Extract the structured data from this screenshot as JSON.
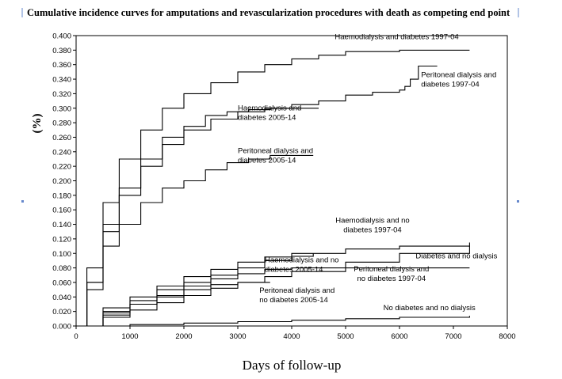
{
  "chart_data": {
    "type": "line",
    "title": "Cumulative incidence curves for amputations and revascularization procedures  with death as competing end point",
    "xlabel": "Days of follow-up",
    "ylabel": "(%)",
    "xlim": [
      0,
      8000
    ],
    "ylim": [
      0,
      0.4
    ],
    "x_ticks": [
      "0",
      "1000",
      "2000",
      "3000",
      "4000",
      "5000",
      "6000",
      "7000",
      "8000"
    ],
    "y_ticks": [
      "0.000",
      "0.020",
      "0.040",
      "0.060",
      "0.080",
      "0.100",
      "0.120",
      "0.140",
      "0.160",
      "0.180",
      "0.200",
      "0.220",
      "0.240",
      "0.260",
      "0.280",
      "0.300",
      "0.320",
      "0.340",
      "0.360",
      "0.380",
      "0.400"
    ],
    "grid": false,
    "legend": "none",
    "series": [
      {
        "name": "Haemodialysis and diabetes 1997-04",
        "x": [
          0,
          200,
          500,
          800,
          1200,
          1600,
          2000,
          2500,
          3000,
          3500,
          4000,
          4500,
          5000,
          6000,
          7300
        ],
        "y": [
          0,
          0.08,
          0.17,
          0.23,
          0.27,
          0.3,
          0.32,
          0.335,
          0.35,
          0.36,
          0.368,
          0.373,
          0.378,
          0.38,
          0.38
        ]
      },
      {
        "name": "Peritoneal dialysis and diabetes 1997-04",
        "x": [
          0,
          200,
          500,
          800,
          1200,
          1600,
          2000,
          2500,
          3000,
          3500,
          4000,
          4500,
          5000,
          5500,
          6000,
          6100,
          6200,
          6350,
          6700
        ],
        "y": [
          0,
          0.06,
          0.13,
          0.18,
          0.22,
          0.25,
          0.27,
          0.285,
          0.295,
          0.3,
          0.305,
          0.31,
          0.318,
          0.322,
          0.325,
          0.33,
          0.34,
          0.358,
          0.358
        ]
      },
      {
        "name": "Haemodialysis and diabetes 2005-14",
        "x": [
          0,
          200,
          500,
          800,
          1200,
          1600,
          2000,
          2400,
          2800,
          3200,
          3600,
          4000,
          4500
        ],
        "y": [
          0,
          0.06,
          0.14,
          0.19,
          0.23,
          0.26,
          0.275,
          0.29,
          0.295,
          0.298,
          0.3,
          0.3,
          0.3
        ]
      },
      {
        "name": "Peritoneal dialysis and diabetes 2005-14",
        "x": [
          0,
          200,
          500,
          800,
          1200,
          1600,
          2000,
          2400,
          2800,
          3200,
          3600,
          4000,
          4400
        ],
        "y": [
          0,
          0.05,
          0.11,
          0.14,
          0.17,
          0.19,
          0.2,
          0.215,
          0.225,
          0.23,
          0.235,
          0.235,
          0.235
        ]
      },
      {
        "name": "Haemodialysis and no diabetes 1997-04",
        "x": [
          0,
          500,
          1000,
          1500,
          2000,
          2500,
          3000,
          3500,
          4000,
          5000,
          6000,
          7300
        ],
        "y": [
          0,
          0.025,
          0.04,
          0.055,
          0.068,
          0.078,
          0.088,
          0.095,
          0.1,
          0.106,
          0.11,
          0.115
        ]
      },
      {
        "name": "Diabetes and no dialysis",
        "x": [
          0,
          500,
          1000,
          1500,
          2000,
          2500,
          3000,
          3500,
          4000,
          5000,
          6000,
          7300
        ],
        "y": [
          0,
          0.012,
          0.022,
          0.032,
          0.042,
          0.052,
          0.06,
          0.068,
          0.075,
          0.088,
          0.1,
          0.11
        ]
      },
      {
        "name": "Haemodialysis and no diabetes 2005-14",
        "x": [
          0,
          500,
          1000,
          1500,
          2000,
          2500,
          3000,
          3500,
          4000,
          4400
        ],
        "y": [
          0,
          0.02,
          0.035,
          0.05,
          0.06,
          0.07,
          0.08,
          0.09,
          0.096,
          0.1
        ]
      },
      {
        "name": "Peritoneal dialysis and no diabetes 1997-04",
        "x": [
          0,
          500,
          1000,
          1500,
          2000,
          2500,
          3000,
          3500,
          4000,
          5000,
          6000,
          7300
        ],
        "y": [
          0,
          0.015,
          0.03,
          0.042,
          0.055,
          0.065,
          0.072,
          0.078,
          0.08,
          0.08,
          0.08,
          0.08
        ]
      },
      {
        "name": "Peritoneal dialysis and no diabetes 2005-14",
        "x": [
          0,
          500,
          1000,
          1500,
          2000,
          2500,
          3000,
          3600
        ],
        "y": [
          0,
          0.018,
          0.03,
          0.04,
          0.05,
          0.057,
          0.06,
          0.06
        ]
      },
      {
        "name": "No diabetes and no dialysis",
        "x": [
          0,
          1000,
          2000,
          3000,
          4000,
          5000,
          6000,
          7300
        ],
        "y": [
          0,
          0.002,
          0.004,
          0.006,
          0.008,
          0.01,
          0.012,
          0.014
        ]
      }
    ],
    "annotations": [
      {
        "lines": [
          "Haemodialysis and diabetes 1997-04"
        ],
        "x": 4800,
        "y": 0.395,
        "anchor": "start"
      },
      {
        "lines": [
          "Peritoneal dialysis and",
          "diabetes 1997-04"
        ],
        "x": 6400,
        "y": 0.343,
        "anchor": "start"
      },
      {
        "lines": [
          "Haemodialysis and",
          "diabetes 2005-14"
        ],
        "x": 3000,
        "y": 0.297,
        "anchor": "start"
      },
      {
        "lines": [
          "Peritoneal dialysis and",
          "diabetes 2005-14"
        ],
        "x": 3000,
        "y": 0.238,
        "anchor": "start"
      },
      {
        "lines": [
          "Haemodialysis and no",
          "diabetes 1997-04"
        ],
        "x": 5500,
        "y": 0.142,
        "anchor": "middle"
      },
      {
        "lines": [
          "Diabetes and no dialysis"
        ],
        "x": 6300,
        "y": 0.093,
        "anchor": "start"
      },
      {
        "lines": [
          "Haemodialysis and no",
          "diabetes 2005-14"
        ],
        "x": 3500,
        "y": 0.088,
        "anchor": "start"
      },
      {
        "lines": [
          "Peritoneal dialysis and",
          "no diabetes 1997-04"
        ],
        "x": 5850,
        "y": 0.075,
        "anchor": "middle"
      },
      {
        "lines": [
          "Peritoneal dialysis and",
          "no diabetes 2005-14"
        ],
        "x": 3400,
        "y": 0.046,
        "anchor": "start"
      },
      {
        "lines": [
          "No diabetes and no dialysis"
        ],
        "x": 5700,
        "y": 0.022,
        "anchor": "start"
      }
    ]
  }
}
